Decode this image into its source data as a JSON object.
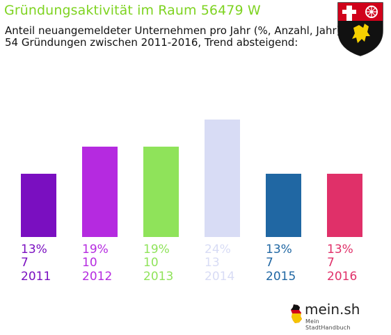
{
  "header": {
    "title": "Gründungsaktivität im Raum 56479 W",
    "subtitle_line1": "Anteil neuangemeldeter Unternehmen pro Jahr (%, Anzahl, Jahr)",
    "subtitle_line2": "54 Gründungen zwischen 2011-2016, Trend absteigend:"
  },
  "crest": {
    "icon": "rheinland-pfalz-coat-of-arms-icon"
  },
  "chart_data": {
    "type": "bar",
    "categories": [
      "2011",
      "2012",
      "2013",
      "2014",
      "2015",
      "2016"
    ],
    "percent_labels": [
      "13%",
      "19%",
      "19%",
      "24%",
      "13%",
      "13%"
    ],
    "count_labels": [
      "7",
      "10",
      "10",
      "13",
      "7",
      "7"
    ],
    "values": [
      7,
      10,
      10,
      13,
      7,
      7
    ],
    "colors": [
      "#7a0fc0",
      "#b52ae0",
      "#8fe35a",
      "#d8dcf5",
      "#2067a3",
      "#e03069"
    ],
    "title": "",
    "xlabel": "",
    "ylabel": "",
    "ylim": [
      0,
      13
    ],
    "grid": false,
    "legend": "none"
  },
  "footer": {
    "logo_text": "mein.sh",
    "logo_sub": "Mein StadtHandbuch",
    "logo_icon": "germany-map-icon"
  }
}
